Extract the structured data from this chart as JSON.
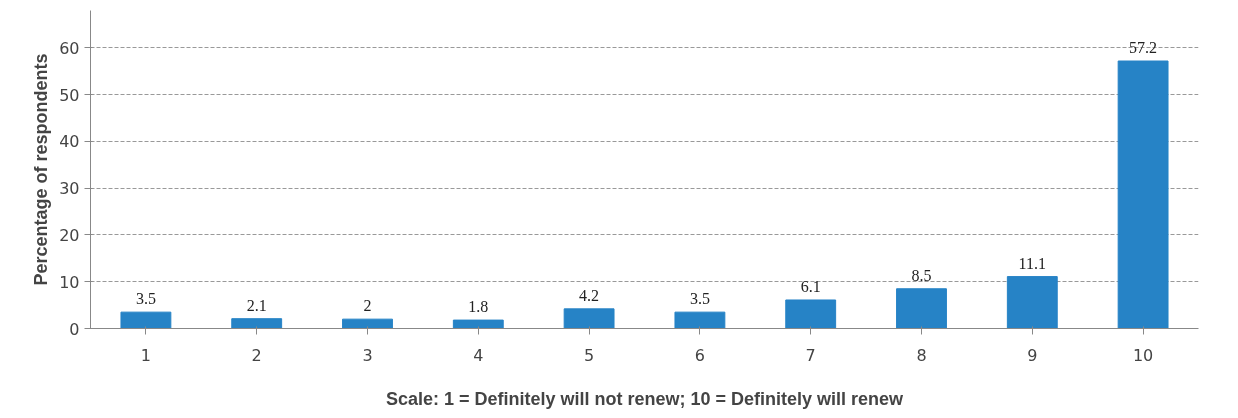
{
  "chart_data": {
    "type": "bar",
    "ylabel": "Percentage of respondents",
    "xlabel": "Scale: 1 = Definitely will not renew; 10 = Definitely will renew",
    "categories": [
      "1",
      "2",
      "3",
      "4",
      "5",
      "6",
      "7",
      "8",
      "9",
      "10"
    ],
    "values": [
      3.5,
      2.1,
      2,
      1.8,
      4.2,
      3.5,
      6.1,
      8.5,
      11.1,
      57.2
    ],
    "color": "#2683c6",
    "ylim": [
      0,
      68
    ],
    "yticks": [
      0,
      10,
      20,
      30,
      40,
      50,
      60
    ],
    "grid": "y",
    "line_style": "dashed",
    "data_labels": true
  }
}
